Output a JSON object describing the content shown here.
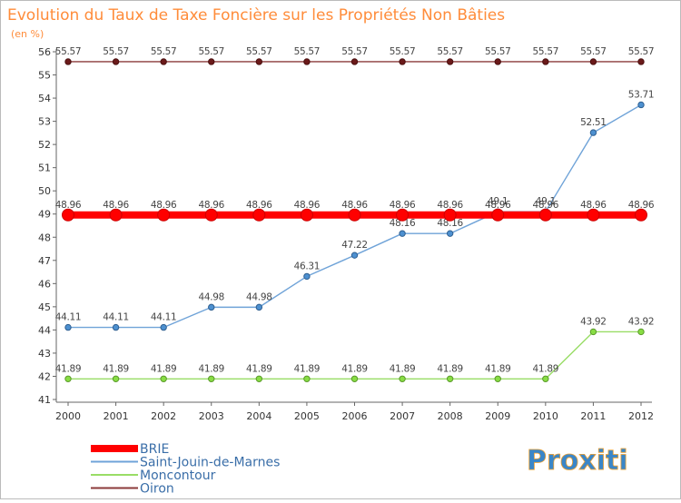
{
  "chart_data": {
    "type": "line",
    "title": "Evolution du Taux de Taxe Foncière sur les Propriétés Non Bâties",
    "subtitle": "(en %)",
    "xlabel": "",
    "ylabel": "",
    "categories": [
      "2000",
      "2001",
      "2002",
      "2003",
      "2004",
      "2005",
      "2006",
      "2007",
      "2008",
      "2009",
      "2010",
      "2011",
      "2012"
    ],
    "ylim": [
      41,
      56
    ],
    "yticks": [
      "41",
      "42",
      "43",
      "44",
      "45",
      "46",
      "47",
      "48",
      "49",
      "50",
      "51",
      "52",
      "53",
      "54",
      "55",
      "56"
    ],
    "grid": false,
    "legend_position": "bottom-left",
    "series": [
      {
        "name": "BRIE",
        "color": "#ff0000",
        "values": [
          48.96,
          48.96,
          48.96,
          48.96,
          48.96,
          48.96,
          48.96,
          48.96,
          48.96,
          48.96,
          48.96,
          48.96,
          48.96
        ],
        "labels": [
          "48.96",
          "48.96",
          "48.96",
          "48.96",
          "48.96",
          "48.96",
          "48.96",
          "48.96",
          "48.96",
          "48.96",
          "48.96",
          "48.96",
          "48.96"
        ]
      },
      {
        "name": "Saint-Jouin-de-Marnes",
        "color": "#6fa3d8",
        "values": [
          44.11,
          44.11,
          44.11,
          44.98,
          44.98,
          46.31,
          47.22,
          48.16,
          48.16,
          49.1,
          49.1,
          52.51,
          53.71
        ],
        "labels": [
          "44.11",
          "44.11",
          "44.11",
          "44.98",
          "44.98",
          "46.31",
          "47.22",
          "48.16",
          "48.16",
          "49.1",
          "49.1",
          "52.51",
          "53.71"
        ]
      },
      {
        "name": "Moncontour",
        "color": "#99dd66",
        "values": [
          41.89,
          41.89,
          41.89,
          41.89,
          41.89,
          41.89,
          41.89,
          41.89,
          41.89,
          41.89,
          41.89,
          43.92,
          43.92
        ],
        "labels": [
          "41.89",
          "41.89",
          "41.89",
          "41.89",
          "41.89",
          "41.89",
          "41.89",
          "41.89",
          "41.89",
          "41.89",
          "41.89",
          "43.92",
          "43.92"
        ]
      },
      {
        "name": "Oiron",
        "color": "#8b3a3a",
        "values": [
          55.57,
          55.57,
          55.57,
          55.57,
          55.57,
          55.57,
          55.57,
          55.57,
          55.57,
          55.57,
          55.57,
          55.57,
          55.57
        ],
        "labels": [
          "55.57",
          "55.57",
          "55.57",
          "55.57",
          "55.57",
          "55.57",
          "55.57",
          "55.57",
          "55.57",
          "55.57",
          "55.57",
          "55.57",
          "55.57"
        ]
      }
    ]
  },
  "logo": {
    "text": "Proxiti"
  }
}
